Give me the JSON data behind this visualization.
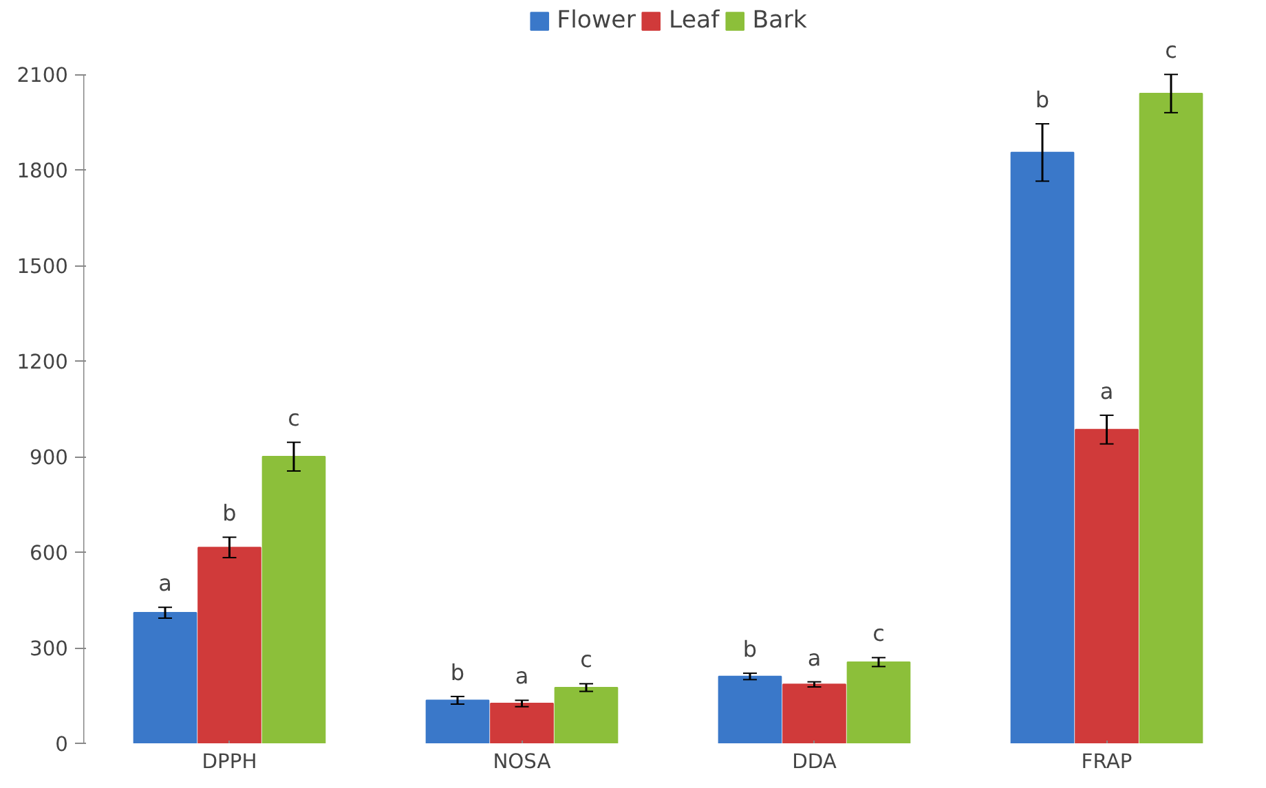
{
  "chart_data": {
    "type": "bar",
    "categories": [
      "DPPH",
      "NOSA",
      "DDA",
      "FRAP"
    ],
    "series": [
      {
        "name": "Flower",
        "color": "#3a78c9",
        "values": [
          410,
          135,
          210,
          1855
        ],
        "errors": [
          17,
          12,
          10,
          90
        ],
        "value_labels": [
          "a",
          "b",
          "b",
          "b"
        ]
      },
      {
        "name": "Leaf",
        "color": "#d03a3a",
        "values": [
          615,
          125,
          185,
          985
        ],
        "errors": [
          32,
          10,
          8,
          45
        ],
        "value_labels": [
          "b",
          "a",
          "a",
          "a"
        ]
      },
      {
        "name": "Bark",
        "color": "#8cbf3a",
        "values": [
          900,
          175,
          255,
          2040
        ],
        "errors": [
          45,
          12,
          14,
          60
        ],
        "value_labels": [
          "c",
          "c",
          "c",
          "c"
        ]
      }
    ],
    "ylim": [
      0,
      2100
    ],
    "yticks": [
      0,
      300,
      600,
      900,
      1200,
      1500,
      1800,
      2100
    ],
    "grid": false,
    "legend": "top"
  }
}
